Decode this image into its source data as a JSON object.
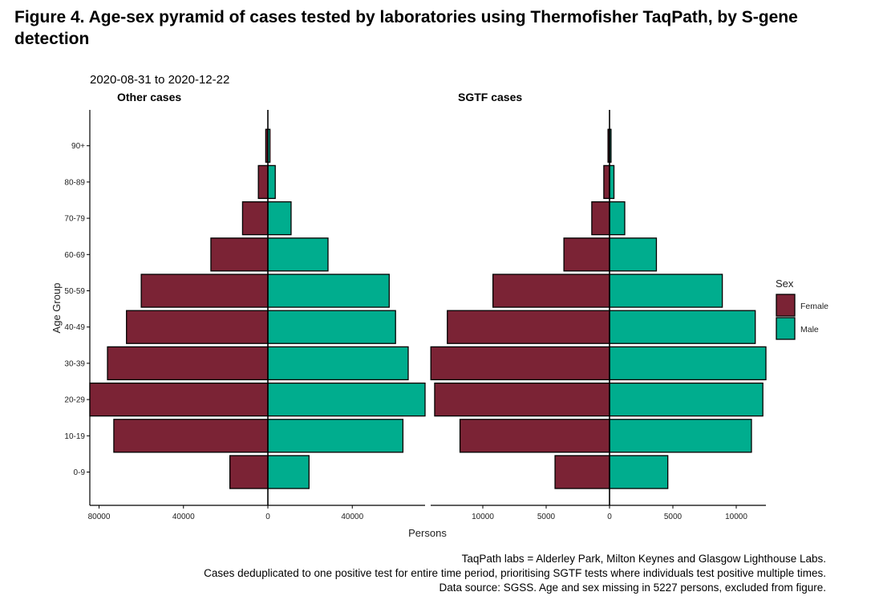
{
  "figure": {
    "title": "Figure 4. Age-sex pyramid of cases tested by laboratories using Thermofisher TaqPath, by S-gene detection",
    "date_range": "2020-08-31  to  2020-12-22",
    "caption_lines": [
      "TaqPath labs = Alderley Park, Milton Keynes and Glasgow Lighthouse Labs.",
      "Cases deduplicated to one positive test for entire time period, prioritising SGTF tests where individuals test positive multiple times.",
      "Data source: SGSS. Age and sex missing in 5227 persons, excluded from figure."
    ]
  },
  "chart_data": {
    "type": "bar",
    "orientation": "horizontal",
    "layout": "age-sex pyramid, two facets",
    "ylabel": "Age Group",
    "xlabel": "Persons",
    "categories": [
      "0-9",
      "10-19",
      "20-29",
      "30-39",
      "40-49",
      "50-59",
      "60-69",
      "70-79",
      "80-89",
      "90+"
    ],
    "legend": {
      "title": "Sex",
      "position": "right",
      "entries": [
        {
          "name": "Female",
          "color": "#7b2335"
        },
        {
          "name": "Male",
          "color": "#00ad8e"
        }
      ]
    },
    "panels": [
      {
        "title": "Other cases",
        "x_ticks": [
          {
            "value": -80000,
            "label": "80000"
          },
          {
            "value": -40000,
            "label": "40000"
          },
          {
            "value": 0,
            "label": "0"
          },
          {
            "value": 40000,
            "label": "40000"
          }
        ],
        "xlim": [
          -85000,
          76000
        ],
        "series": [
          {
            "name": "Female",
            "values": [
              18000,
              73000,
              85000,
              76000,
              67000,
              60000,
              27000,
              12000,
              4500,
              1000
            ]
          },
          {
            "name": "Male",
            "values": [
              19500,
              64000,
              76000,
              66500,
              60500,
              57500,
              28500,
              11000,
              3500,
              1000
            ]
          }
        ]
      },
      {
        "title": "SGTF cases",
        "x_ticks": [
          {
            "value": -10000,
            "label": "10000"
          },
          {
            "value": -5000,
            "label": "5000"
          },
          {
            "value": 0,
            "label": "0"
          },
          {
            "value": 5000,
            "label": "5000"
          },
          {
            "value": 10000,
            "label": "10000"
          }
        ],
        "xlim": [
          -14200,
          12400
        ],
        "series": [
          {
            "name": "Female",
            "values": [
              4300,
              11800,
              13800,
              14100,
              12800,
              9200,
              3600,
              1400,
              450,
              120
            ]
          },
          {
            "name": "Male",
            "values": [
              4600,
              11200,
              12100,
              12400,
              11500,
              8900,
              3700,
              1200,
              350,
              120
            ]
          }
        ]
      }
    ]
  }
}
